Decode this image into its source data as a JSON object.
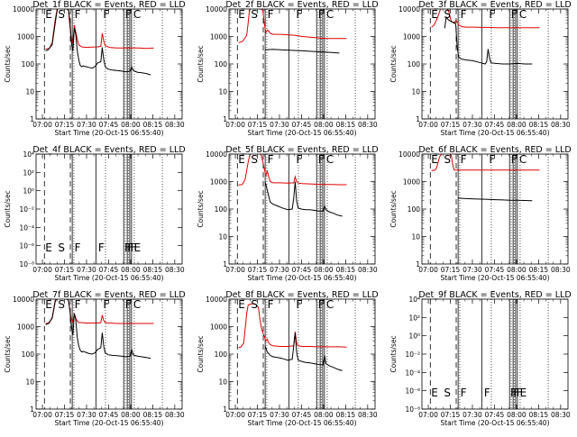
{
  "figure": {
    "x_label": "Start Time (20-Oct-15 06:55:40)",
    "y_label": "Counts/sec",
    "x_ticks": [
      "07:00",
      "07:15",
      "07:30",
      "07:45",
      "08:00",
      "08:15",
      "08:30"
    ],
    "y_ticks": [
      "1",
      "10",
      "100",
      "1000",
      "10000"
    ],
    "y_ticks_empty": [
      "10⁻⁸",
      "10⁻⁶",
      "10⁻⁴",
      "10⁻²",
      "10⁰",
      "10²",
      "10⁴"
    ],
    "colors": {
      "events": "#000000",
      "lld": "#e00000"
    }
  },
  "flag_letters": {
    "E": "E",
    "S": "S",
    "F": "F",
    "C": "C"
  },
  "chart_data": [
    {
      "type": "line",
      "title": "Det_1f BLACK = Events, RED = LLD",
      "ylim": [
        1,
        10000
      ],
      "yscale": "log",
      "xlim": [
        "06:55:40",
        "08:35"
      ],
      "series": [
        {
          "name": "Events",
          "x": [
            6.5,
            8,
            11,
            13,
            14.5,
            16,
            18,
            20,
            22,
            23,
            24,
            25,
            26,
            27,
            28,
            29,
            30,
            31,
            32,
            34,
            36,
            38,
            40,
            42,
            44,
            45,
            46,
            47,
            49,
            52,
            55,
            58,
            61,
            64,
            65,
            66,
            67,
            69,
            72,
            75,
            78
          ],
          "y": [
            300,
            320,
            500,
            3000,
            10000,
            12000,
            12000,
            11000,
            9000,
            4000,
            600,
            300,
            2000,
            1200,
            300,
            150,
            90,
            80,
            85,
            80,
            75,
            70,
            80,
            110,
            120,
            400,
            150,
            80,
            65,
            60,
            58,
            55,
            52,
            55,
            80,
            60,
            55,
            50,
            48,
            45,
            40
          ]
        },
        {
          "name": "LLD",
          "x": [
            6.5,
            9,
            11,
            13,
            14.5,
            17,
            20,
            22,
            24,
            25,
            26,
            27,
            28,
            29,
            31,
            34,
            38,
            42,
            44,
            45,
            46,
            47,
            50,
            55,
            60,
            65,
            70,
            75,
            80
          ],
          "y": [
            350,
            370,
            600,
            4000,
            11000,
            12000,
            11500,
            9000,
            700,
            600,
            2600,
            1500,
            800,
            500,
            420,
            400,
            410,
            420,
            440,
            1300,
            700,
            460,
            400,
            380,
            380,
            380,
            380,
            370,
            380
          ]
        }
      ]
    },
    {
      "type": "line",
      "title": "Det_2f BLACK = Events, RED = LLD",
      "ylim": [
        1,
        10000
      ],
      "yscale": "log",
      "xlim": [
        "06:55:40",
        "08:35"
      ],
      "series": [
        {
          "name": "Events",
          "x": [
            24.5,
            30,
            35,
            40,
            45,
            50,
            55,
            60,
            65,
            70,
            75
          ],
          "y": [
            330,
            340,
            330,
            320,
            310,
            300,
            290,
            280,
            270,
            260,
            250
          ]
        },
        {
          "name": "LLD",
          "x": [
            6.5,
            9,
            11,
            12,
            13,
            14,
            16,
            20,
            23,
            24,
            25,
            26,
            27,
            28,
            30,
            35,
            40,
            45,
            50,
            55,
            60,
            65,
            70,
            75,
            80
          ],
          "y": [
            600,
            650,
            900,
            1100,
            3000,
            10000,
            12000,
            11000,
            9000,
            3000,
            1400,
            1700,
            1600,
            1300,
            1200,
            1200,
            1150,
            1100,
            1000,
            950,
            900,
            850,
            850,
            850,
            850
          ]
        }
      ]
    },
    {
      "type": "line",
      "title": "Det_3f BLACK = Events, RED = LLD",
      "ylim": [
        1,
        10000
      ],
      "yscale": "log",
      "xlim": [
        "06:55:40",
        "08:35"
      ],
      "series": [
        {
          "name": "Events",
          "x": [
            15.5,
            16.5,
            18,
            20,
            22,
            23,
            24,
            25,
            27,
            30,
            35,
            40,
            43,
            44,
            45,
            46,
            47,
            50,
            55,
            60,
            65,
            70,
            75
          ],
          "y": [
            2000,
            5000,
            4000,
            3500,
            3200,
            2800,
            400,
            180,
            150,
            140,
            130,
            110,
            100,
            120,
            350,
            160,
            110,
            105,
            100,
            100,
            105,
            100,
            100
          ]
        },
        {
          "name": "LLD",
          "x": [
            6.5,
            8,
            10,
            12,
            13,
            14,
            16,
            18,
            20,
            22,
            23,
            24,
            25,
            27,
            30,
            35,
            40,
            45,
            50,
            55,
            60,
            65,
            70,
            75,
            80
          ],
          "y": [
            2200,
            2500,
            4000,
            8000,
            12000,
            12000,
            11000,
            9000,
            3500,
            3000,
            3800,
            3500,
            2600,
            2300,
            2200,
            2200,
            2150,
            2150,
            2100,
            2100,
            2100,
            2100,
            2100,
            2100,
            2100
          ]
        }
      ]
    },
    {
      "type": "line",
      "title": "Det_4f BLACK = Events, RED = LLD",
      "ylim": [
        1e-08,
        10000
      ],
      "yscale": "log",
      "xlim": [
        "06:55:40",
        "08:35"
      ],
      "series": []
    },
    {
      "type": "line",
      "title": "Det_5f BLACK = Events, RED = LLD",
      "ylim": [
        1,
        10000
      ],
      "yscale": "log",
      "xlim": [
        "06:55:40",
        "08:35"
      ],
      "series": [
        {
          "name": "Events",
          "x": [
            24.5,
            26,
            28,
            30,
            33,
            36,
            40,
            43,
            44,
            45,
            46,
            47,
            49,
            52,
            55,
            58,
            61,
            64,
            65,
            66,
            68,
            71,
            74,
            77
          ],
          "y": [
            1000,
            500,
            180,
            150,
            130,
            110,
            95,
            100,
            250,
            1000,
            200,
            110,
            100,
            95,
            95,
            90,
            85,
            85,
            130,
            95,
            80,
            70,
            60,
            55
          ]
        },
        {
          "name": "LLD",
          "x": [
            6.5,
            9,
            11,
            13,
            14.5,
            17,
            20,
            22,
            24,
            25,
            26,
            27,
            28,
            30,
            35,
            40,
            44,
            45,
            46,
            47,
            50,
            55,
            60,
            65,
            70,
            75,
            80
          ],
          "y": [
            750,
            780,
            1200,
            5000,
            11000,
            12000,
            11500,
            9000,
            3000,
            1600,
            2500,
            1500,
            1000,
            900,
            900,
            880,
            900,
            1500,
            1000,
            880,
            850,
            820,
            800,
            780,
            780,
            770,
            770
          ]
        }
      ]
    },
    {
      "type": "line",
      "title": "Det_6f BLACK = Events, RED = LLD",
      "ylim": [
        1,
        10000
      ],
      "yscale": "log",
      "xlim": [
        "06:55:40",
        "08:35"
      ],
      "series": [
        {
          "name": "Events",
          "x": [
            24.5,
            30,
            35,
            40,
            45,
            50,
            55,
            60,
            65,
            70,
            75
          ],
          "y": [
            250,
            240,
            235,
            230,
            225,
            220,
            215,
            210,
            210,
            205,
            200
          ]
        },
        {
          "name": "LLD",
          "x": [
            6.5,
            9,
            10,
            11,
            12,
            14,
            16,
            18,
            20,
            21,
            22,
            23,
            30,
            40,
            50,
            60,
            70,
            80
          ],
          "y": [
            2500,
            2600,
            3200,
            5000,
            8000,
            11000,
            11500,
            11000,
            9000,
            4000,
            2600,
            2600,
            2600,
            2600,
            2600,
            2600,
            2600,
            2600
          ]
        }
      ]
    },
    {
      "type": "line",
      "title": "Det_7f BLACK = Events, RED = LLD",
      "ylim": [
        1,
        10000
      ],
      "yscale": "log",
      "xlim": [
        "06:55:40",
        "08:35"
      ],
      "series": [
        {
          "name": "Events",
          "x": [
            6.5,
            8,
            11,
            13,
            14.5,
            16,
            18,
            20,
            22,
            23,
            24,
            25,
            26,
            27,
            28,
            29,
            30,
            31,
            32,
            34,
            36,
            38,
            40,
            42,
            44,
            45,
            46,
            47,
            49,
            52,
            55,
            58,
            61,
            64,
            65,
            66,
            67,
            69,
            72,
            75,
            78
          ],
          "y": [
            1200,
            1250,
            2000,
            8000,
            12000,
            12000,
            12000,
            11000,
            9000,
            4000,
            1000,
            500,
            3000,
            1800,
            400,
            200,
            140,
            120,
            125,
            115,
            105,
            100,
            110,
            150,
            170,
            600,
            200,
            110,
            95,
            90,
            88,
            85,
            80,
            85,
            150,
            95,
            90,
            85,
            80,
            75,
            70
          ]
        },
        {
          "name": "LLD",
          "x": [
            6.5,
            9,
            11,
            13,
            14.5,
            17,
            20,
            22,
            24,
            25,
            26,
            27,
            28,
            29,
            31,
            34,
            38,
            42,
            44,
            45,
            46,
            47,
            50,
            55,
            60,
            65,
            70,
            75,
            80
          ],
          "y": [
            1300,
            1350,
            2200,
            9000,
            12000,
            12000,
            11500,
            9000,
            1800,
            1500,
            3000,
            2000,
            1600,
            1400,
            1400,
            1350,
            1350,
            1350,
            1400,
            2600,
            1700,
            1400,
            1350,
            1300,
            1300,
            1300,
            1300,
            1300,
            1300
          ]
        }
      ]
    },
    {
      "type": "line",
      "title": "Det_8f BLACK = Events, RED = LLD",
      "ylim": [
        1,
        10000
      ],
      "yscale": "log",
      "xlim": [
        "06:55:40",
        "08:35"
      ],
      "series": [
        {
          "name": "Events",
          "x": [
            24.5,
            26,
            28,
            30,
            33,
            36,
            40,
            43,
            44,
            45,
            46,
            47,
            49,
            52,
            55,
            58,
            61,
            64,
            65,
            66,
            68,
            71,
            74,
            77
          ],
          "y": [
            200,
            120,
            90,
            80,
            75,
            70,
            60,
            65,
            200,
            600,
            120,
            60,
            55,
            50,
            48,
            45,
            42,
            40,
            90,
            45,
            38,
            33,
            28,
            25
          ]
        },
        {
          "name": "LLD",
          "x": [
            6.5,
            8,
            10,
            11,
            12,
            13,
            14,
            16,
            18,
            19,
            20,
            21,
            22,
            23,
            24,
            25,
            26,
            27,
            28,
            30,
            35,
            40,
            44,
            45,
            46,
            47,
            50,
            55,
            60,
            65,
            70,
            75,
            80
          ],
          "y": [
            170,
            180,
            250,
            800,
            3000,
            6000,
            6500,
            6800,
            6500,
            6000,
            5000,
            2000,
            900,
            600,
            450,
            300,
            350,
            260,
            220,
            200,
            190,
            190,
            200,
            650,
            250,
            200,
            190,
            190,
            185,
            185,
            185,
            185,
            180
          ]
        }
      ]
    },
    {
      "type": "line",
      "title": "Det_9f BLACK = Events, RED = LLD",
      "ylim": [
        1e-08,
        10000
      ],
      "yscale": "log",
      "xlim": [
        "06:55:40",
        "08:35"
      ],
      "series": []
    }
  ]
}
